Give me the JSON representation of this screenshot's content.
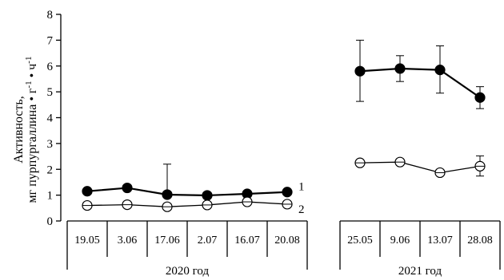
{
  "chart_data": {
    "type": "line",
    "ylabel_lines": [
      "Активность,",
      "мг пурпургаллина • г",
      "-1",
      " • ч",
      "-1"
    ],
    "ylim": [
      0,
      8
    ],
    "yticks": [
      "0",
      "1",
      "2",
      "3",
      "4",
      "5",
      "6",
      "7",
      "8"
    ],
    "groups": [
      {
        "label": "2020 год",
        "categories": [
          "19.05",
          "3.06",
          "17.06",
          "2.07",
          "16.07",
          "20.08"
        ],
        "series": [
          {
            "name": "1",
            "marker": "filled-circle",
            "values": [
              1.15,
              1.28,
              1.02,
              0.99,
              1.05,
              1.12
            ],
            "err_low": [
              0.05,
              0.05,
              0.1,
              0.05,
              0.05,
              0.05
            ],
            "err_high": [
              0.05,
              0.05,
              1.18,
              0.05,
              0.05,
              0.05
            ]
          },
          {
            "name": "2",
            "marker": "open-circle",
            "values": [
              0.6,
              0.63,
              0.55,
              0.62,
              0.74,
              0.65
            ],
            "err_low": [
              0.05,
              0.05,
              0.1,
              0.05,
              0.05,
              0.05
            ],
            "err_high": [
              0.05,
              0.05,
              0.05,
              0.05,
              0.05,
              0.05
            ]
          }
        ]
      },
      {
        "label": "2021 год",
        "categories": [
          "25.05",
          "9.06",
          "13.07",
          "28.08"
        ],
        "series": [
          {
            "name": "1",
            "marker": "filled-circle",
            "values": [
              5.8,
              5.9,
              5.85,
              4.78
            ],
            "err_low": [
              1.17,
              0.5,
              0.9,
              0.43
            ],
            "err_high": [
              1.2,
              0.5,
              0.93,
              0.42
            ]
          },
          {
            "name": "2",
            "marker": "open-circle",
            "values": [
              2.25,
              2.28,
              1.87,
              2.12
            ],
            "err_low": [
              0.05,
              0.12,
              0.1,
              0.38
            ],
            "err_high": [
              0.05,
              0.12,
              0.1,
              0.4
            ]
          }
        ]
      }
    ],
    "series_labels": [
      "1",
      "2"
    ],
    "grid": false,
    "legend": "inline-right-of-first-group"
  }
}
